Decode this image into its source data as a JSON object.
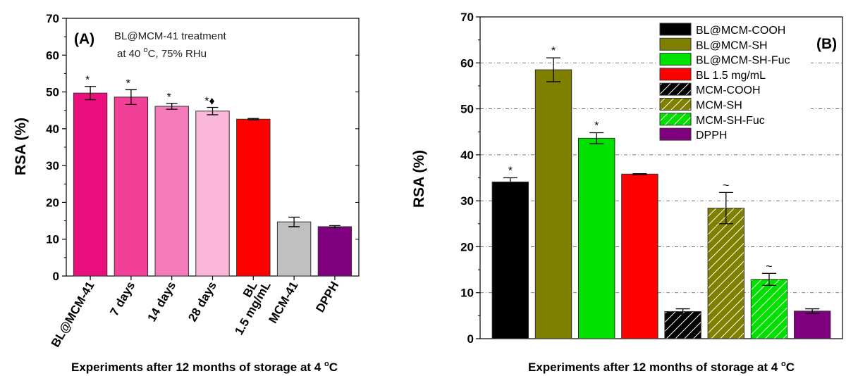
{
  "chart_data": [
    {
      "type": "bar",
      "panel_label": "(A)",
      "annotation_lines": [
        "BL@MCM-41 treatment",
        "at 40 °C, 75% RHu"
      ],
      "ylabel": "RSA (%)",
      "xlabel": "Experiments after 12 months of storage at 4 °C",
      "ylim": [
        0,
        70
      ],
      "yticks": [
        0,
        10,
        20,
        30,
        40,
        50,
        60,
        70
      ],
      "categories": [
        [
          "BL@MCM-41"
        ],
        [
          "7 days"
        ],
        [
          "14 days"
        ],
        [
          "28 days"
        ],
        [
          "BL",
          "1.5 mg/mL"
        ],
        [
          "MCM-41"
        ],
        [
          "DPPH"
        ]
      ],
      "values": [
        49.7,
        48.6,
        46.1,
        44.8,
        42.6,
        14.7,
        13.4
      ],
      "errors": [
        1.8,
        2.0,
        0.8,
        1.0,
        0.2,
        1.3,
        0.3
      ],
      "markers": [
        "*",
        "*",
        "*",
        "*♦",
        "",
        "",
        ""
      ],
      "colors": [
        "#ea0f7d",
        "#f23f97",
        "#f57ab9",
        "#fab6d8",
        "#ff0000",
        "#c0c0c0",
        "#7f007f"
      ]
    },
    {
      "type": "bar",
      "panel_label": "(B)",
      "ylabel": "RSA (%)",
      "xlabel": "Experiments after 12 months of storage at 4 °C",
      "ylim": [
        0,
        70
      ],
      "yticks": [
        0,
        10,
        20,
        30,
        40,
        50,
        60,
        70
      ],
      "grid": true,
      "legend_position": "top-right",
      "series": [
        {
          "name": "BL@MCM-COOH",
          "value": 34.1,
          "error": 0.9,
          "marker": "*",
          "color": "#000000",
          "hatched": false
        },
        {
          "name": "BL@MCM-SH",
          "value": 58.5,
          "error": 2.6,
          "marker": "*",
          "color": "#808000",
          "hatched": false
        },
        {
          "name": "BL@MCM-SH-Fuc",
          "value": 43.6,
          "error": 1.2,
          "marker": "*",
          "color": "#00e100",
          "hatched": false
        },
        {
          "name": "BL 1.5 mg/mL",
          "value": 35.8,
          "error": 0.1,
          "marker": "",
          "color": "#ff0000",
          "hatched": false
        },
        {
          "name": "MCM-COOH",
          "value": 5.9,
          "error": 0.6,
          "marker": "",
          "color": "#000000",
          "hatched": true
        },
        {
          "name": "MCM-SH",
          "value": 28.4,
          "error": 3.4,
          "marker": "~",
          "color": "#808000",
          "hatched": true
        },
        {
          "name": "MCM-SH-Fuc",
          "value": 12.9,
          "error": 1.3,
          "marker": "~",
          "color": "#00e100",
          "hatched": true
        },
        {
          "name": "DPPH",
          "value": 6.0,
          "error": 0.5,
          "marker": "",
          "color": "#7f007f",
          "hatched": false
        }
      ]
    }
  ]
}
